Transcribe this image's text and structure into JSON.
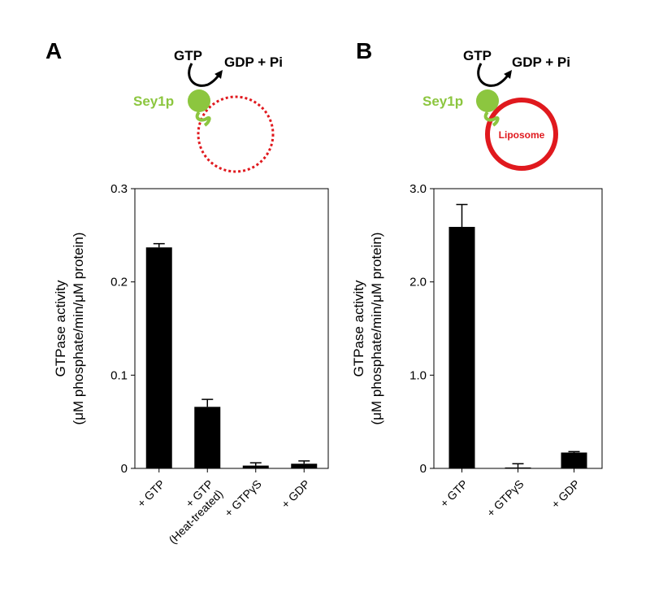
{
  "colors": {
    "sey1p_green": "#8cc63f",
    "membrane_red": "#e0191e",
    "bar_black": "#000000"
  },
  "panels": [
    {
      "letter": "A",
      "schematic": {
        "substrate": "GTP",
        "products": "GDP + Pi",
        "protein": "Sey1p",
        "membrane": "dotted-circle",
        "membrane_label": ""
      }
    },
    {
      "letter": "B",
      "schematic": {
        "substrate": "GTP",
        "products": "GDP + Pi",
        "protein": "Sey1p",
        "membrane": "solid-circle",
        "membrane_label": "Liposome"
      }
    }
  ],
  "chart_data": [
    {
      "type": "bar",
      "panel": "A",
      "categories": [
        "+ GTP",
        "+ GTP (Heat-treated)",
        "+ GTPγS",
        "+ GDP"
      ],
      "category_lines": [
        [
          "+ GTP"
        ],
        [
          "+ GTP",
          "(Heat-treated)"
        ],
        [
          "+ GTPγS"
        ],
        [
          "+ GDP"
        ]
      ],
      "values": [
        0.237,
        0.066,
        0.003,
        0.005
      ],
      "errors": [
        0.004,
        0.008,
        0.003,
        0.003
      ],
      "ylim": [
        0,
        0.3
      ],
      "yticks": [
        0,
        0.1,
        0.2,
        0.3
      ],
      "ytick_labels": [
        "0",
        "0.1",
        "0.2",
        "0.3"
      ],
      "ylabel_lines": [
        "GTPase activity",
        "(μM phosphate/min/μM protein)"
      ],
      "xlabel": ""
    },
    {
      "type": "bar",
      "panel": "B",
      "categories": [
        "+ GTP",
        "+ GTPγS",
        "+ GDP"
      ],
      "category_lines": [
        [
          "+ GTP"
        ],
        [
          "+ GTPγS"
        ],
        [
          "+ GDP"
        ]
      ],
      "values": [
        2.59,
        0.01,
        0.17
      ],
      "errors": [
        0.24,
        0.04,
        0.01
      ],
      "ylim": [
        0,
        3.0
      ],
      "yticks": [
        0,
        1.0,
        2.0,
        3.0
      ],
      "ytick_labels": [
        "0",
        "1.0",
        "2.0",
        "3.0"
      ],
      "ylabel_lines": [
        "GTPase activity",
        "(μM phosphate/min/μM protein)"
      ],
      "xlabel": ""
    }
  ]
}
